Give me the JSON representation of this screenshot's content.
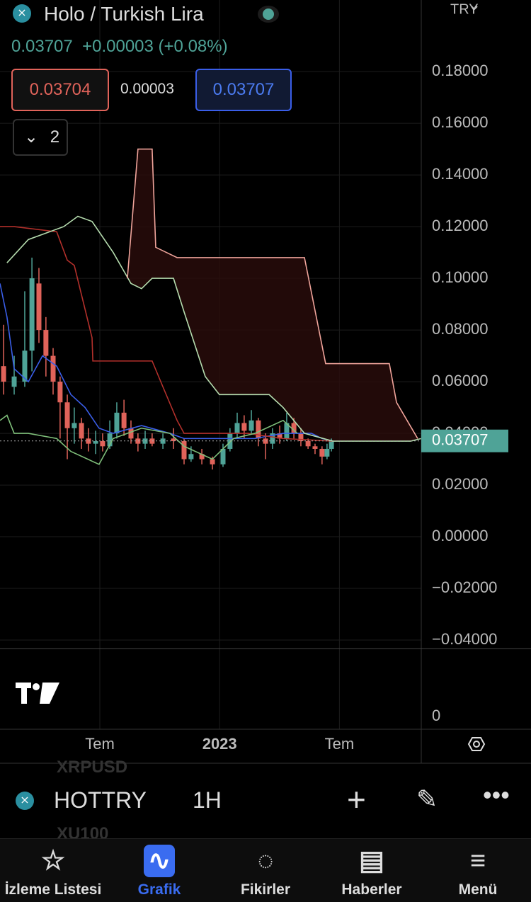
{
  "header": {
    "title": "Holo / Turkish Lira",
    "price": "0.03707",
    "change": "+0.00003 (+0.08%)",
    "bid": "0.03704",
    "spread": "0.00003",
    "ask": "0.03707",
    "indicators_count": "2",
    "currency": "TRY"
  },
  "chart_data": {
    "type": "candlestick",
    "ylim": [
      -0.043,
      0.2077
    ],
    "yticks": [
      {
        "value": -0.04,
        "label": "−0.04000"
      },
      {
        "value": -0.02,
        "label": "−0.02000"
      },
      {
        "value": 0,
        "label": "0.00000"
      },
      {
        "value": 0.02,
        "label": "0.02000"
      },
      {
        "value": 0.04,
        "label": "0.04000"
      },
      {
        "value": 0.06,
        "label": "0.06000"
      },
      {
        "value": 0.08,
        "label": "0.08000"
      },
      {
        "value": 0.1,
        "label": "0.10000"
      },
      {
        "value": 0.12,
        "label": "0.12000"
      },
      {
        "value": 0.14,
        "label": "0.14000"
      },
      {
        "value": 0.16,
        "label": "0.16000"
      },
      {
        "value": 0.18,
        "label": "0.18000"
      }
    ],
    "xlim": [
      0,
      21.1
    ],
    "xticks": [
      {
        "value": 5,
        "label": "Tem"
      },
      {
        "value": 11,
        "label": "2023"
      },
      {
        "value": 17,
        "label": "Tem"
      }
    ],
    "grid": true,
    "last_price": {
      "value": 0.03707,
      "label": "0.03707",
      "color": "#4fa397"
    },
    "volume_tick": 0,
    "up_color": "#4fa397",
    "down_color": "#e0635a",
    "candles": {
      "x": [
        0.18,
        0.71,
        1.24,
        1.6,
        1.95,
        2.3,
        2.66,
        3.01,
        3.37,
        3.72,
        4.08,
        4.43,
        4.79,
        5.14,
        5.5,
        5.85,
        6.21,
        6.56,
        6.91,
        7.27,
        7.62,
        8.16,
        8.69,
        9.22,
        9.57,
        10.11,
        10.64,
        11.17,
        11.52,
        11.88,
        12.23,
        12.59,
        12.94,
        13.3,
        13.65,
        14.01,
        14.36,
        14.72,
        15.07,
        15.43,
        15.78,
        16.13,
        16.38,
        16.6
      ],
      "open": [
        0.066,
        0.058,
        0.06,
        0.072,
        0.098,
        0.08,
        0.07,
        0.06,
        0.052,
        0.042,
        0.044,
        0.038,
        0.036,
        0.037,
        0.035,
        0.04,
        0.048,
        0.042,
        0.038,
        0.036,
        0.038,
        0.036,
        0.038,
        0.037,
        0.03,
        0.032,
        0.03,
        0.028,
        0.034,
        0.04,
        0.044,
        0.041,
        0.045,
        0.038,
        0.036,
        0.04,
        0.038,
        0.044,
        0.04,
        0.037,
        0.035,
        0.034,
        0.031,
        0.034
      ],
      "high": [
        0.082,
        0.07,
        0.095,
        0.108,
        0.104,
        0.085,
        0.073,
        0.062,
        0.055,
        0.05,
        0.046,
        0.042,
        0.041,
        0.04,
        0.045,
        0.052,
        0.053,
        0.045,
        0.04,
        0.041,
        0.04,
        0.04,
        0.042,
        0.038,
        0.035,
        0.034,
        0.031,
        0.036,
        0.042,
        0.048,
        0.047,
        0.049,
        0.046,
        0.04,
        0.042,
        0.043,
        0.048,
        0.046,
        0.042,
        0.038,
        0.036,
        0.035,
        0.036,
        0.038
      ],
      "low": [
        0.055,
        0.055,
        0.058,
        0.064,
        0.075,
        0.062,
        0.055,
        0.038,
        0.03,
        0.036,
        0.034,
        0.033,
        0.032,
        0.033,
        0.034,
        0.038,
        0.039,
        0.036,
        0.033,
        0.034,
        0.035,
        0.034,
        0.034,
        0.028,
        0.029,
        0.028,
        0.026,
        0.027,
        0.033,
        0.038,
        0.038,
        0.04,
        0.035,
        0.03,
        0.034,
        0.036,
        0.037,
        0.038,
        0.035,
        0.034,
        0.032,
        0.028,
        0.03,
        0.033
      ],
      "close": [
        0.06,
        0.062,
        0.072,
        0.1,
        0.08,
        0.07,
        0.06,
        0.052,
        0.042,
        0.044,
        0.038,
        0.036,
        0.037,
        0.035,
        0.04,
        0.048,
        0.042,
        0.038,
        0.036,
        0.038,
        0.036,
        0.038,
        0.037,
        0.03,
        0.032,
        0.03,
        0.028,
        0.034,
        0.04,
        0.044,
        0.041,
        0.045,
        0.038,
        0.036,
        0.04,
        0.038,
        0.044,
        0.04,
        0.037,
        0.035,
        0.034,
        0.031,
        0.034,
        0.03707
      ]
    },
    "series": [
      {
        "color": "#3a5ee8",
        "x": [
          0,
          0.35,
          0.71,
          1.42,
          2.13,
          2.84,
          3.55,
          4.26,
          4.96,
          5.67,
          7.09,
          8.51,
          9.22,
          11.35,
          12.77,
          14.18,
          15.6,
          16.13,
          16.67
        ],
        "values": [
          0.098,
          0.085,
          0.065,
          0.06,
          0.07,
          0.066,
          0.055,
          0.05,
          0.042,
          0.04,
          0.043,
          0.04,
          0.038,
          0.038,
          0.038,
          0.04,
          0.04,
          0.038,
          0.037
        ]
      },
      {
        "color": "#b3302b",
        "x": [
          0,
          0.71,
          2.84,
          3.37,
          3.72,
          4.61,
          4.65,
          7.62,
          8.16,
          8.87,
          9.22,
          11.35,
          12.41,
          14.18,
          16.67
        ],
        "values": [
          0.12,
          0.12,
          0.118,
          0.107,
          0.105,
          0.077,
          0.068,
          0.068,
          0.058,
          0.045,
          0.04,
          0.04,
          0.04,
          0.038,
          0.037
        ]
      },
      {
        "color": "#7fbf7a",
        "x": [
          0,
          0.35,
          0.71,
          1.42,
          2.84,
          3.55,
          4.96,
          5.67,
          7.09,
          8.51,
          9.22,
          10.64,
          11.7,
          12.77,
          14.18,
          14.89
        ],
        "values": [
          0.045,
          0.047,
          0.04,
          0.04,
          0.038,
          0.033,
          0.028,
          0.038,
          0.042,
          0.04,
          0.035,
          0.03,
          0.038,
          0.04,
          0.045,
          0.04
        ]
      },
      {
        "color": "#b5dcae",
        "x": [
          0.35,
          1.42,
          3.19,
          3.9,
          4.61,
          5.67,
          6.56,
          7.09,
          7.62,
          8.69,
          9.22,
          10.28,
          10.99,
          13.48,
          14.18,
          15.25,
          16.67,
          17.73,
          20.57,
          21.1
        ],
        "values": [
          0.106,
          0.115,
          0.12,
          0.124,
          0.122,
          0.11,
          0.098,
          0.096,
          0.1,
          0.1,
          0.087,
          0.062,
          0.055,
          0.055,
          0.05,
          0.04,
          0.037,
          0.037,
          0.037,
          0.038
        ]
      },
      {
        "color": "#f0a49b",
        "x": [
          6.38,
          6.91,
          7.62,
          7.8,
          8.87,
          15.25,
          16.31,
          19.5,
          19.86,
          20.39,
          20.92
        ],
        "values": [
          0.1,
          0.15,
          0.15,
          0.112,
          0.108,
          0.108,
          0.067,
          0.067,
          0.052,
          0.045,
          0.038
        ]
      }
    ]
  },
  "toolbar": {
    "prev_symbol": "XRPUSD",
    "symbol": "HOTTRY",
    "interval": "1H",
    "next_symbol": "XU100"
  },
  "nav": [
    "İzleme Listesi",
    "Grafik",
    "Fikirler",
    "Haberler",
    "Menü"
  ]
}
